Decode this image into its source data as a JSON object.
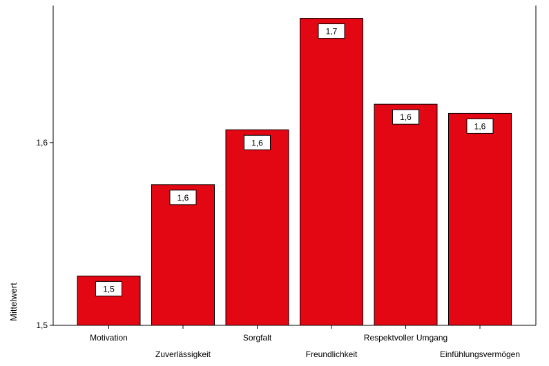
{
  "chart_data": {
    "type": "bar",
    "title": "",
    "xlabel": "",
    "ylabel": "Mittelwert",
    "categories": [
      "Motivation",
      "Zuverlässigkeit",
      "Sorgfalt",
      "Freundlichkeit",
      "Respektvoller Umgang",
      "Einfühlungsvermögen"
    ],
    "values": [
      1.527,
      1.577,
      1.607,
      1.668,
      1.621,
      1.616
    ],
    "data_labels": [
      "1,5",
      "1,6",
      "1,6",
      "1,7",
      "1,6",
      "1,6"
    ],
    "ylim": [
      1.5,
      1.675
    ],
    "yticks": [
      1.5,
      1.6
    ],
    "ytick_labels": [
      "1,5",
      "1,6"
    ],
    "grid": false,
    "legend": "none",
    "bar_color": "#e30613",
    "bar_edge_color": "#000000"
  }
}
